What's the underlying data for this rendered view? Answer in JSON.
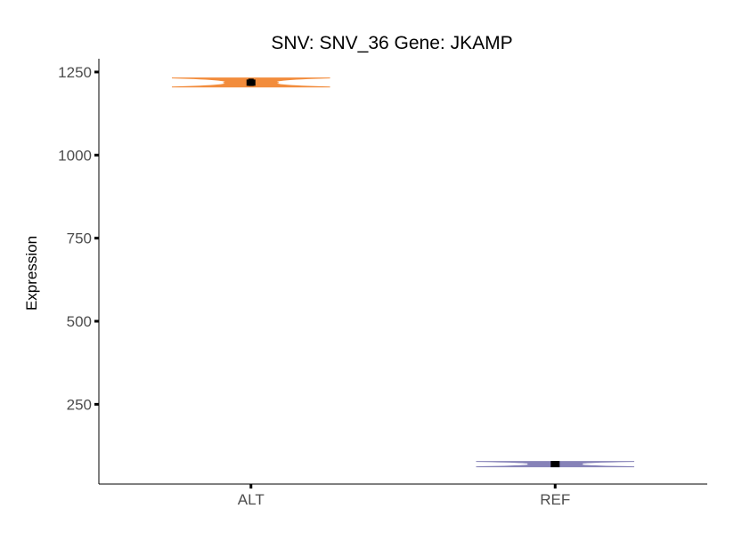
{
  "chart_data": {
    "type": "violin",
    "title": "SNV: SNV_36    Gene: JKAMP",
    "xlabel": "",
    "ylabel": "Expression",
    "categories": [
      "ALT",
      "REF"
    ],
    "ylim": [
      10,
      1290
    ],
    "yticks": [
      250,
      500,
      750,
      1000,
      1250
    ],
    "grid": false,
    "legend": "none",
    "groups": [
      {
        "category": "ALT",
        "color": "#F28C3C",
        "center": 1218,
        "min": 1205,
        "max": 1232,
        "error_low": 1210,
        "error_high": 1228
      },
      {
        "category": "REF",
        "color": "#8682B8",
        "center": 70,
        "min": 62,
        "max": 78,
        "error_low": 67,
        "error_high": 73
      }
    ]
  }
}
